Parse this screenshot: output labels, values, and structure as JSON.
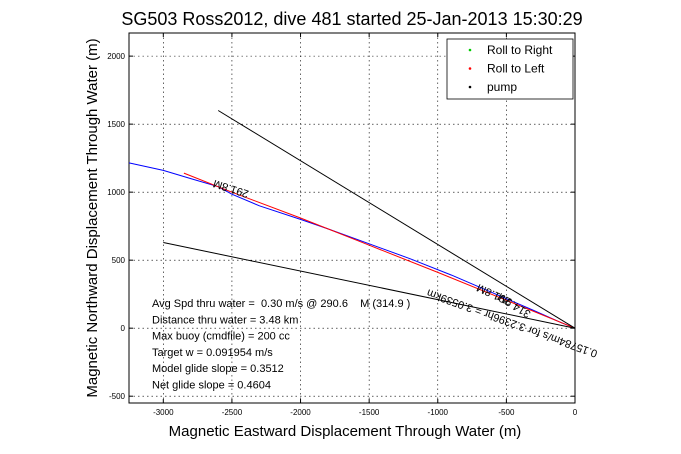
{
  "chart_data": {
    "type": "line",
    "title": "SG503 Ross2012, dive 481 started 25-Jan-2013 15:30:29",
    "xlabel": "Magnetic Eastward Displacement Through Water (m)",
    "ylabel": "Magnetic Northward Displacement Through Water (m)",
    "xlim": [
      -3250,
      0
    ],
    "ylim": [
      -550,
      2170
    ],
    "x_ticks": [
      -3000,
      -2500,
      -2000,
      -1500,
      -1000,
      -500,
      0
    ],
    "y_ticks": [
      -500,
      0,
      500,
      1000,
      1500,
      2000
    ],
    "grid": true,
    "legend_position": "top-right",
    "legend": [
      {
        "label": "Roll to Right",
        "color": "#00cc00"
      },
      {
        "label": "Roll to Left",
        "color": "#ff0000"
      },
      {
        "label": "pump",
        "color": "#000000"
      }
    ],
    "series": [
      {
        "color": "#0000ff",
        "x": [
          -3250,
          -3000,
          -2800,
          -2600,
          -2500,
          -2300,
          -2000,
          -1800,
          -1500,
          -1200,
          -900,
          -600,
          -300,
          -100,
          0
        ],
        "y": [
          1215,
          1160,
          1100,
          1040,
          985,
          900,
          800,
          730,
          620,
          510,
          390,
          260,
          130,
          40,
          0
        ]
      },
      {
        "color": "#ff0000",
        "x": [
          -2850,
          -2500,
          -2000,
          -1500,
          -1000,
          -500,
          0
        ],
        "y": [
          1140,
          1000,
          810,
          610,
          410,
          205,
          0
        ]
      },
      {
        "color": "#000000",
        "x": [
          -2600,
          0
        ],
        "y": [
          1600,
          0
        ]
      },
      {
        "color": "#000000",
        "x": [
          -3000,
          0
        ],
        "y": [
          630,
          0
        ]
      }
    ],
    "annotations": [
      {
        "text": "291.8M",
        "x": -2500,
        "y": 1050,
        "angle": 198
      },
      {
        "text": "314.9M",
        "x": -430,
        "y": 190,
        "angle": 212
      },
      {
        "text": "0.15784m/s for 3.2396hr = 3.0539km",
        "x": -450,
        "y": 60,
        "angle": 200
      },
      {
        "text": "291.8M",
        "x": -580,
        "y": 270,
        "angle": 205
      }
    ],
    "stats": [
      "Avg Spd thru water =  0.30 m/s @ 290.6    M (314.9 )",
      "Distance thru water = 3.48 km",
      "Max buoy (cmdfile) = 200 cc",
      "Target w = 0.091954 m/s",
      "Model glide slope = 0.3512",
      "Net glide slope = 0.4604"
    ]
  }
}
